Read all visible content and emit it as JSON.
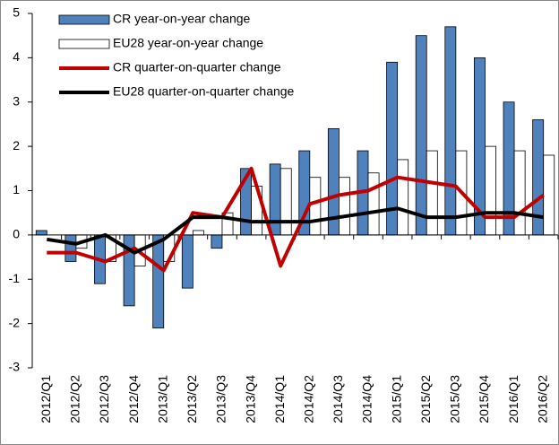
{
  "chart_data": {
    "type": "bar",
    "categories": [
      "2012/Q1",
      "2012/Q2",
      "2012/Q3",
      "2012/Q4",
      "2013/Q1",
      "2013/Q2",
      "2013/Q3",
      "2013/Q4",
      "2014/Q1",
      "2014/Q2",
      "2014/Q3",
      "2014/Q4",
      "2015/Q1",
      "2015/Q2",
      "2015/Q3",
      "2015/Q4",
      "2016/Q1",
      "2016/Q2"
    ],
    "series": [
      {
        "name": "CR year-on-year change",
        "type": "bar",
        "color": "#4f81bd",
        "values": [
          0.1,
          -0.6,
          -1.1,
          -1.6,
          -2.1,
          -1.2,
          -0.3,
          1.5,
          1.6,
          1.9,
          2.4,
          1.9,
          3.9,
          4.5,
          4.7,
          4.0,
          3.0,
          2.6
        ]
      },
      {
        "name": "EU28 year-on-year change",
        "type": "bar",
        "color": "#ffffff",
        "values": [
          0.0,
          -0.3,
          -0.6,
          -0.7,
          -0.6,
          0.1,
          0.5,
          1.1,
          1.5,
          1.3,
          1.3,
          1.4,
          1.7,
          1.9,
          1.9,
          2.0,
          1.9,
          1.8
        ]
      },
      {
        "name": "CR quarter-on-quarter change",
        "type": "line",
        "color": "#c00000",
        "values": [
          -0.4,
          -0.4,
          -0.6,
          -0.3,
          -0.8,
          0.5,
          0.4,
          1.5,
          -0.7,
          0.7,
          0.9,
          1.0,
          1.3,
          1.2,
          1.1,
          0.4,
          0.4,
          0.9
        ]
      },
      {
        "name": "EU28 quarter-on-quarter change",
        "type": "line",
        "color": "#000000",
        "values": [
          -0.1,
          -0.2,
          0.0,
          -0.4,
          -0.1,
          0.4,
          0.4,
          0.3,
          0.3,
          0.3,
          0.4,
          0.5,
          0.6,
          0.4,
          0.4,
          0.5,
          0.5,
          0.4
        ]
      }
    ],
    "ylim": [
      -3,
      5
    ],
    "yticks": [
      -3,
      -2,
      -1,
      0,
      1,
      2,
      3,
      4,
      5
    ],
    "grid": false
  }
}
